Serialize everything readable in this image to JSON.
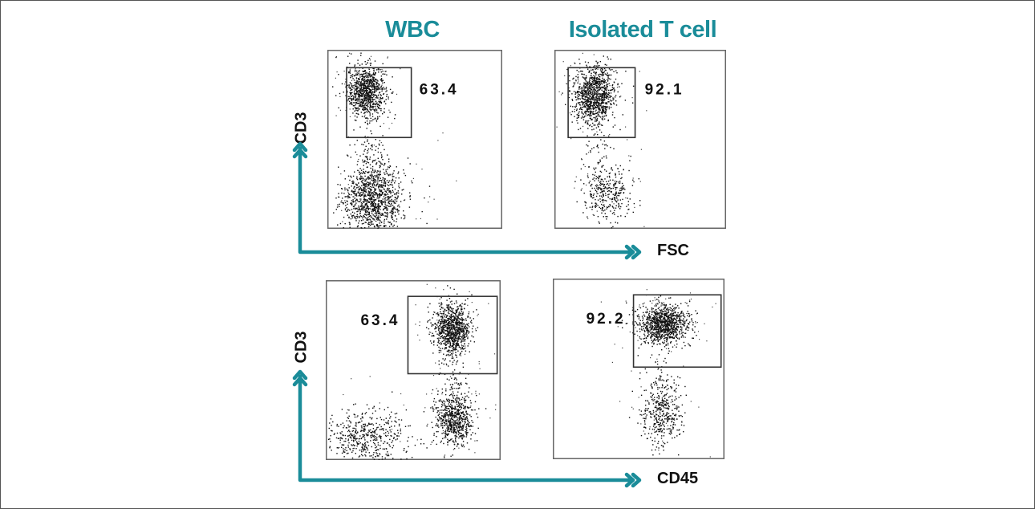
{
  "colors": {
    "accent": "#1a8c99",
    "dots": "#111111",
    "gate": "#333333",
    "panel_border": "#666666"
  },
  "columns": {
    "left_title": "WBC",
    "right_title": "Isolated T cell"
  },
  "rows": [
    {
      "x_axis_label": "FSC",
      "y_axis_label": "CD3"
    },
    {
      "x_axis_label": "CD45",
      "y_axis_label": "CD3"
    }
  ],
  "chart_data": [
    {
      "type": "scatter",
      "title": "WBC",
      "xlabel": "FSC",
      "ylabel": "CD3",
      "gate_percent_label": "63.4",
      "gate_percent": 63.4,
      "gate": {
        "x": [
          0.11,
          0.48
        ],
        "y": [
          0.51,
          0.9
        ]
      },
      "populations": [
        {
          "cx": 0.22,
          "cy": 0.77,
          "sx": 0.055,
          "sy": 0.072,
          "n": 900
        },
        {
          "cx": 0.26,
          "cy": 0.17,
          "sx": 0.085,
          "sy": 0.1,
          "n": 1100
        },
        {
          "cx": 0.24,
          "cy": 0.42,
          "sx": 0.05,
          "sy": 0.08,
          "n": 70
        }
      ]
    },
    {
      "type": "scatter",
      "title": "Isolated T cell",
      "xlabel": "FSC",
      "ylabel": "CD3",
      "gate_percent_label": "92.1",
      "gate_percent": 92.1,
      "gate": {
        "x": [
          0.08,
          0.47
        ],
        "y": [
          0.51,
          0.9
        ]
      },
      "populations": [
        {
          "cx": 0.23,
          "cy": 0.75,
          "sx": 0.06,
          "sy": 0.08,
          "n": 1000
        },
        {
          "cx": 0.3,
          "cy": 0.2,
          "sx": 0.07,
          "sy": 0.08,
          "n": 320
        },
        {
          "cx": 0.25,
          "cy": 0.44,
          "sx": 0.035,
          "sy": 0.09,
          "n": 50
        }
      ]
    },
    {
      "type": "scatter",
      "title": "WBC",
      "xlabel": "CD45",
      "ylabel": "CD3",
      "gate_percent_label": "63.4",
      "gate_percent": 63.4,
      "gate": {
        "x": [
          0.47,
          0.98
        ],
        "y": [
          0.48,
          0.91
        ]
      },
      "populations": [
        {
          "cx": 0.72,
          "cy": 0.73,
          "sx": 0.05,
          "sy": 0.07,
          "n": 900
        },
        {
          "cx": 0.73,
          "cy": 0.23,
          "sx": 0.055,
          "sy": 0.08,
          "n": 650
        },
        {
          "cx": 0.22,
          "cy": 0.13,
          "sx": 0.12,
          "sy": 0.08,
          "n": 500
        },
        {
          "cx": 0.72,
          "cy": 0.45,
          "sx": 0.04,
          "sy": 0.07,
          "n": 40
        }
      ]
    },
    {
      "type": "scatter",
      "title": "Isolated T cell",
      "xlabel": "CD45",
      "ylabel": "CD3",
      "gate_percent_label": "92.2",
      "gate_percent": 92.2,
      "gate": {
        "x": [
          0.47,
          0.98
        ],
        "y": [
          0.51,
          0.91
        ]
      },
      "populations": [
        {
          "cx": 0.64,
          "cy": 0.75,
          "sx": 0.075,
          "sy": 0.055,
          "n": 1000
        },
        {
          "cx": 0.63,
          "cy": 0.25,
          "sx": 0.06,
          "sy": 0.09,
          "n": 380
        },
        {
          "cx": 0.62,
          "cy": 0.45,
          "sx": 0.04,
          "sy": 0.07,
          "n": 40
        }
      ]
    }
  ]
}
